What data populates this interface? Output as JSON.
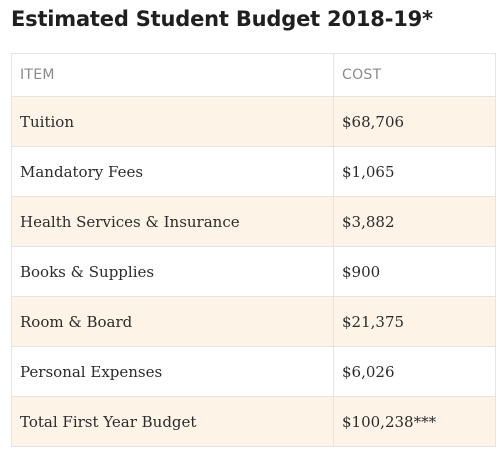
{
  "title": "Estimated Student Budget 2018-19*",
  "table": {
    "headers": [
      "ITEM",
      "COST"
    ],
    "rows": [
      {
        "item": "Tuition",
        "cost": "$68,706"
      },
      {
        "item": "Mandatory Fees",
        "cost": "$1,065"
      },
      {
        "item": "Health Services & Insurance",
        "cost": "$3,882"
      },
      {
        "item": "Books & Supplies",
        "cost": "$900"
      },
      {
        "item": "Room & Board",
        "cost": "$21,375"
      },
      {
        "item": "Personal Expenses",
        "cost": "$6,026"
      },
      {
        "item": "Total First Year Budget",
        "cost": "$100,238***"
      }
    ]
  },
  "colors": {
    "row_highlight": "#fdf4e7",
    "border": "#e4e4e4",
    "header_text": "#8a8a8a"
  }
}
